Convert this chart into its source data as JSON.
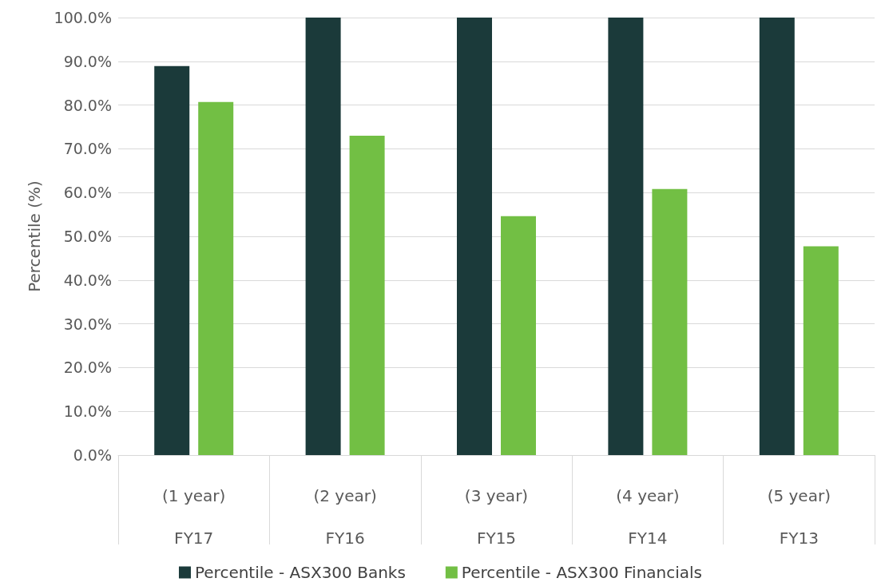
{
  "chart_data": {
    "type": "bar",
    "ylabel": "Percentile (%)",
    "categories": [
      "(1 year)\nFY17",
      "(2 year)\nFY16",
      "(3 year)\nFY15",
      "(4 year)\nFY14",
      "(5 year)\nFY13"
    ],
    "series": [
      {
        "name": "Percentile - ASX300 Banks",
        "color": "#1b3a3a",
        "values": [
          88.9,
          100,
          100,
          100,
          100
        ]
      },
      {
        "name": "Percentile - ASX300 Financials",
        "color": "#72bf44",
        "values": [
          80.7,
          73.0,
          54.6,
          60.8,
          47.7
        ]
      }
    ],
    "ylim": [
      0,
      100
    ],
    "yticks": [
      {
        "value": 0,
        "label": "0.0%"
      },
      {
        "value": 10,
        "label": "10.0%"
      },
      {
        "value": 20,
        "label": "20.0%"
      },
      {
        "value": 30,
        "label": "30.0%"
      },
      {
        "value": 40,
        "label": "40.0%"
      },
      {
        "value": 50,
        "label": "50.0%"
      },
      {
        "value": 60,
        "label": "60.0%"
      },
      {
        "value": 70,
        "label": "70.0%"
      },
      {
        "value": 80,
        "label": "80.0%"
      },
      {
        "value": 90,
        "label": "90.0%"
      },
      {
        "value": 100,
        "label": "100.0%"
      }
    ],
    "grid": "y",
    "legend": "bottom"
  }
}
